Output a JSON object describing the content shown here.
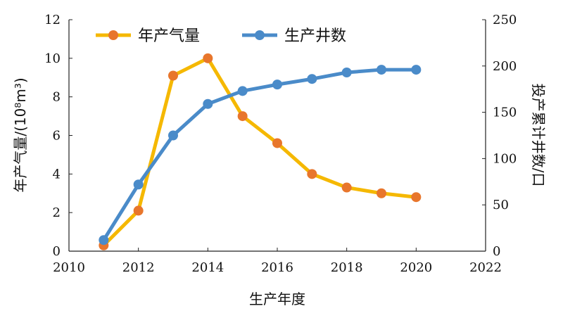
{
  "chart_data": {
    "type": "line",
    "xlabel": "生产年度",
    "ylabel_left": "年产气量/(10⁸m³)",
    "ylabel_right": "投产累计井数/口",
    "xlim": [
      2010,
      2022
    ],
    "x_ticks": [
      "2010",
      "2012",
      "2014",
      "2016",
      "2018",
      "2020",
      "2022"
    ],
    "ylim_left": [
      0,
      12
    ],
    "y_ticks_left": [
      "0",
      "2",
      "4",
      "6",
      "8",
      "10",
      "12"
    ],
    "ylim_right": [
      0,
      250
    ],
    "y_ticks_right": [
      "0",
      "50",
      "100",
      "150",
      "200",
      "250"
    ],
    "grid": false,
    "legend_position": "top-left",
    "series": [
      {
        "name": "年产气量",
        "axis": "left",
        "color": "#f5b800",
        "marker_color": "#e8762c",
        "x": [
          2011,
          2012,
          2013,
          2014,
          2015,
          2016,
          2017,
          2018,
          2019,
          2020
        ],
        "values": [
          0.3,
          2.1,
          9.1,
          10.0,
          7.0,
          5.6,
          4.0,
          3.3,
          3.0,
          2.8
        ]
      },
      {
        "name": "生产井数",
        "axis": "right",
        "color": "#4a8bc9",
        "marker_color": "#4a8bc9",
        "x": [
          2011,
          2012,
          2013,
          2014,
          2015,
          2016,
          2017,
          2018,
          2019,
          2020
        ],
        "values": [
          12,
          72,
          125,
          159,
          173,
          180,
          186,
          193,
          196,
          196
        ]
      }
    ]
  }
}
